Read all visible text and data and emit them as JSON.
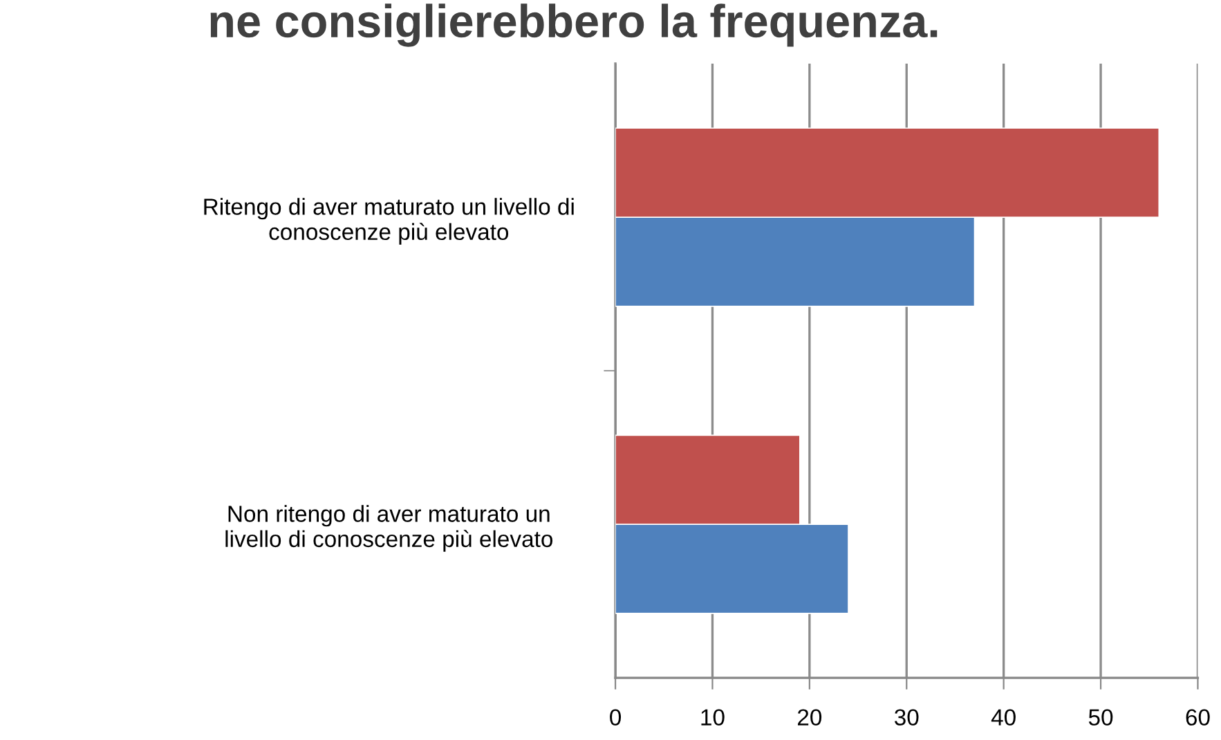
{
  "chart_data": {
    "type": "bar",
    "orientation": "horizontal",
    "title": "ne consiglierebbero la frequenza.",
    "categories": [
      "Ritengo di aver maturato un livello di\nconoscenze più elevato",
      "Non ritengo di aver maturato un\nlivello di conoscenze più elevato"
    ],
    "series": [
      {
        "color": "#4f81bd",
        "values": [
          37,
          24
        ]
      },
      {
        "color": "#c0504d",
        "values": [
          56,
          19
        ]
      }
    ],
    "xlim": [
      0,
      60
    ],
    "xticks": [
      0,
      10,
      20,
      30,
      40,
      50,
      60
    ],
    "grid": "x",
    "legend": false
  }
}
